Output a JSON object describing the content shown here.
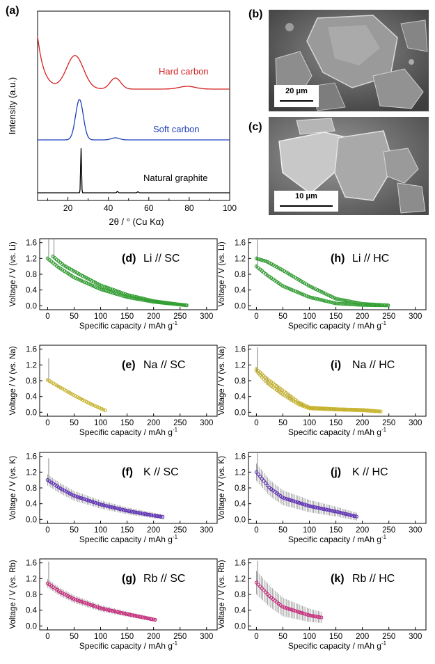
{
  "panel_a": {
    "letter": "(a)",
    "xlabel": "2θ / ° (Cu Kα)",
    "ylabel": "Intensity (a.u.)",
    "xticks": [
      "20",
      "40",
      "60",
      "80",
      "100"
    ],
    "labels": {
      "hard": "Hard carbon",
      "soft": "Soft carbon",
      "graphite": "Natural graphite"
    },
    "colors": {
      "hard": "#d42020",
      "soft": "#1f3fbf",
      "graphite": "#000000"
    }
  },
  "panel_b": {
    "letter": "(b)",
    "scale": "20 μm"
  },
  "panel_c": {
    "letter": "(c)",
    "scale": "10 μm"
  },
  "axes_common": {
    "xlabel": "Specific capacity / mAh g",
    "xlabel_sup": "-1",
    "xticks": [
      "0",
      "50",
      "100",
      "150",
      "200",
      "250",
      "300"
    ],
    "yticks": [
      "0.0",
      "0.4",
      "0.8",
      "1.2",
      "1.6"
    ]
  },
  "chart_data": [
    {
      "type": "line",
      "panel": "(a)",
      "xlabel": "2θ / ° (Cu Kα)",
      "ylabel": "Intensity (a.u.)",
      "xlim": [
        5,
        100
      ],
      "series": [
        {
          "name": "Hard carbon",
          "color": "#d42020",
          "peaks": [
            [
              23,
              "broad"
            ],
            [
              43.5,
              "medium"
            ],
            [
              79,
              "weak"
            ]
          ]
        },
        {
          "name": "Soft carbon",
          "color": "#1f3fbf",
          "peaks": [
            [
              25.5,
              "strong"
            ],
            [
              43,
              "weak"
            ]
          ]
        },
        {
          "name": "Natural graphite",
          "color": "#000000",
          "peaks": [
            [
              26.5,
              "sharp"
            ],
            [
              44.5,
              "weak"
            ],
            [
              54.5,
              "weak"
            ]
          ]
        }
      ]
    },
    {
      "type": "line",
      "panel": "(d)",
      "title": "Li // SC",
      "ylabel": "Voltage / V (vs. Li)",
      "xlim": [
        -15,
        320
      ],
      "ylim": [
        -0.1,
        1.7
      ],
      "color": "#2ea02e",
      "series": [
        {
          "name": "",
          "x": [
            0,
            20,
            50,
            100,
            150,
            200,
            250,
            265
          ],
          "y": [
            1.2,
            0.98,
            0.72,
            0.42,
            0.22,
            0.1,
            0.03,
            0.01
          ]
        },
        {
          "name": "",
          "x": [
            10,
            30,
            60,
            100,
            150,
            200,
            250,
            265
          ],
          "y": [
            1.25,
            1.03,
            0.8,
            0.52,
            0.28,
            0.12,
            0.03,
            0.01
          ]
        }
      ]
    },
    {
      "type": "line",
      "panel": "(h)",
      "title": "Li // HC",
      "ylabel": "Voltage / V (vs. Li)",
      "xlim": [
        -15,
        320
      ],
      "ylim": [
        -0.1,
        1.7
      ],
      "color": "#2ea02e",
      "series": [
        {
          "name": "",
          "x": [
            0,
            20,
            50,
            100,
            150,
            200,
            250
          ],
          "y": [
            1.0,
            0.78,
            0.5,
            0.22,
            0.06,
            0.02,
            0.01
          ]
        },
        {
          "name": "",
          "x": [
            0,
            20,
            50,
            100,
            150,
            200,
            250
          ],
          "y": [
            1.2,
            1.12,
            0.9,
            0.5,
            0.18,
            0.05,
            0.01
          ]
        }
      ]
    },
    {
      "type": "line",
      "panel": "(e)",
      "title": "Na // SC",
      "ylabel": "Voltage / V (vs. Na)",
      "xlim": [
        -15,
        320
      ],
      "ylim": [
        -0.1,
        1.7
      ],
      "color": "#c8b42a",
      "series": [
        {
          "name": "",
          "x": [
            0,
            20,
            50,
            80,
            110
          ],
          "y": [
            0.82,
            0.66,
            0.43,
            0.22,
            0.04
          ]
        }
      ]
    },
    {
      "type": "line",
      "panel": "(i)",
      "title": "Na // HC",
      "ylabel": "Voltage / V (vs. Na)",
      "xlim": [
        -15,
        320
      ],
      "ylim": [
        -0.1,
        1.7
      ],
      "color": "#c8b42a",
      "series": [
        {
          "name": "",
          "x": [
            0,
            20,
            50,
            80,
            100,
            150,
            200,
            235
          ],
          "y": [
            1.05,
            0.75,
            0.45,
            0.2,
            0.1,
            0.07,
            0.05,
            0.02
          ]
        },
        {
          "name": "",
          "x": [
            0,
            20,
            50,
            80,
            100,
            150,
            200,
            235
          ],
          "y": [
            1.1,
            0.85,
            0.55,
            0.25,
            0.12,
            0.08,
            0.06,
            0.02
          ]
        }
      ]
    },
    {
      "type": "line",
      "panel": "(f)",
      "title": "K // SC",
      "ylabel": "Voltage / V (vs. K)",
      "xlim": [
        -15,
        320
      ],
      "ylim": [
        -0.1,
        1.7
      ],
      "color": "#5a2ab4",
      "series": [
        {
          "name": "",
          "x": [
            0,
            25,
            50,
            100,
            150,
            200,
            220
          ],
          "y": [
            1.0,
            0.78,
            0.6,
            0.38,
            0.22,
            0.1,
            0.06
          ]
        }
      ]
    },
    {
      "type": "line",
      "panel": "(j)",
      "title": "K // HC",
      "ylabel": "Voltage / V (vs. K)",
      "xlim": [
        -15,
        320
      ],
      "ylim": [
        -0.1,
        1.7
      ],
      "color": "#5a2ab4",
      "series": [
        {
          "name": "",
          "x": [
            0,
            25,
            50,
            100,
            150,
            190
          ],
          "y": [
            1.2,
            0.8,
            0.55,
            0.34,
            0.2,
            0.07
          ]
        }
      ]
    },
    {
      "type": "line",
      "panel": "(g)",
      "title": "Rb // SC",
      "ylabel": "Voltage / V (vs. Rb)",
      "xlim": [
        -15,
        320
      ],
      "ylim": [
        -0.1,
        1.7
      ],
      "color": "#c8257a",
      "series": [
        {
          "name": "",
          "x": [
            0,
            25,
            50,
            100,
            150,
            205
          ],
          "y": [
            1.08,
            0.85,
            0.68,
            0.45,
            0.3,
            0.15
          ]
        }
      ]
    },
    {
      "type": "line",
      "panel": "(k)",
      "title": "Rb // HC",
      "ylabel": "Voltage / V (vs. Rb)",
      "xlim": [
        -15,
        320
      ],
      "ylim": [
        -0.1,
        1.7
      ],
      "color": "#c8257a",
      "series": [
        {
          "name": "",
          "x": [
            0,
            25,
            50,
            100,
            125
          ],
          "y": [
            1.1,
            0.75,
            0.48,
            0.27,
            0.21
          ]
        }
      ]
    }
  ]
}
